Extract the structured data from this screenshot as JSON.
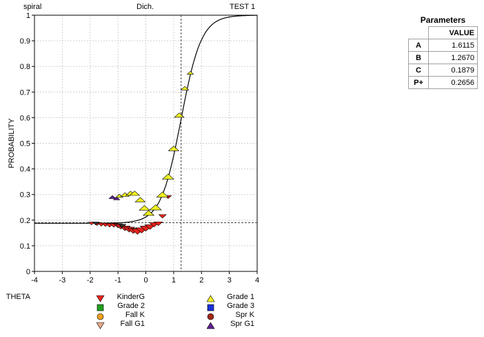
{
  "header": {
    "left": "spiral",
    "center": "Dich.",
    "right": "TEST 1"
  },
  "chart_data": {
    "type": "scatter",
    "xlabel": "THETA",
    "ylabel": "PROBABILITY",
    "xlim": [
      -4,
      4
    ],
    "ylim": [
      0,
      1
    ],
    "xticks": [
      "-4",
      "-3",
      "-2",
      "-1",
      "0",
      "1",
      "2",
      "3",
      "4"
    ],
    "yticks": [
      "0",
      "0.1",
      "0.2",
      "0.3",
      "0.4",
      "0.5",
      "0.6",
      "0.7",
      "0.8",
      "0.9",
      "1"
    ],
    "grid": true,
    "reference_lines": {
      "x": 1.267,
      "y": 0.19
    },
    "curve": {
      "a": 1.6115,
      "b": 1.267,
      "c": 0.1879
    },
    "series": [
      {
        "name": "KinderG",
        "marker": "triangle-down",
        "color": "#e8241c",
        "points": [
          [
            -1.95,
            0.187,
            0.3
          ],
          [
            -1.75,
            0.185,
            0.4
          ],
          [
            -1.6,
            0.183,
            0.45
          ],
          [
            -1.45,
            0.182,
            0.5
          ],
          [
            -1.3,
            0.18,
            0.55
          ],
          [
            -1.15,
            0.18,
            0.6
          ],
          [
            -1.0,
            0.178,
            0.65
          ],
          [
            -0.9,
            0.174,
            0.8
          ],
          [
            -0.75,
            0.168,
            0.85
          ],
          [
            -0.6,
            0.163,
            0.9
          ],
          [
            -0.45,
            0.158,
            0.95
          ],
          [
            -0.3,
            0.155,
            1.0
          ],
          [
            -0.15,
            0.16,
            1.0
          ],
          [
            0.0,
            0.167,
            0.95
          ],
          [
            0.15,
            0.173,
            0.85
          ],
          [
            0.3,
            0.182,
            0.75
          ],
          [
            0.45,
            0.186,
            0.6
          ],
          [
            0.6,
            0.215,
            0.5
          ],
          [
            0.8,
            0.29,
            0.4
          ]
        ]
      },
      {
        "name": "Grade 1",
        "marker": "triangle-up",
        "color": "#f0f020",
        "points": [
          [
            -0.95,
            0.295,
            0.45
          ],
          [
            -0.75,
            0.3,
            0.6
          ],
          [
            -0.55,
            0.305,
            0.7
          ],
          [
            -0.4,
            0.305,
            0.75
          ],
          [
            -0.2,
            0.28,
            0.8
          ],
          [
            -0.05,
            0.248,
            0.85
          ],
          [
            0.1,
            0.228,
            0.9
          ],
          [
            0.35,
            0.25,
            1.0
          ],
          [
            0.6,
            0.3,
            1.0
          ],
          [
            0.8,
            0.37,
            0.95
          ],
          [
            1.0,
            0.48,
            0.85
          ],
          [
            1.2,
            0.61,
            0.75
          ],
          [
            1.4,
            0.715,
            0.55
          ],
          [
            1.6,
            0.775,
            0.35
          ]
        ]
      },
      {
        "name": "Fall G1",
        "marker": "triangle-down-small",
        "color": "#303030",
        "points": [
          [
            -1.8,
            0.187,
            0.35
          ],
          [
            -0.85,
            0.178,
            0.4
          ]
        ]
      },
      {
        "name": "Spr G1",
        "marker": "triangle-up-small",
        "color": "#602090",
        "points": [
          [
            -1.2,
            0.29,
            0.4
          ],
          [
            -1.05,
            0.285,
            0.35
          ]
        ]
      }
    ]
  },
  "legend": [
    {
      "label": "KinderG",
      "marker": "triangle-down",
      "color": "#e8241c"
    },
    {
      "label": "Grade 1",
      "marker": "triangle-up",
      "color": "#f0f020"
    },
    {
      "label": "Grade 2",
      "marker": "square",
      "color": "#20a020"
    },
    {
      "label": "Grade 3",
      "marker": "square",
      "color": "#1830d8"
    },
    {
      "label": "Fall K",
      "marker": "circle",
      "color": "#f0a020"
    },
    {
      "label": "Spr K",
      "marker": "circle",
      "color": "#a02818"
    },
    {
      "label": "Fall G1",
      "marker": "triangle-down",
      "color": "#e8a888"
    },
    {
      "label": "Spr G1",
      "marker": "triangle-up",
      "color": "#602090"
    }
  ],
  "parameters": {
    "title": "Parameters",
    "column_header": "VALUE",
    "rows": [
      {
        "key": "A",
        "value": "1.6115"
      },
      {
        "key": "B",
        "value": "1.2670"
      },
      {
        "key": "C",
        "value": "0.1879"
      },
      {
        "key": "P+",
        "value": "0.2656"
      }
    ]
  }
}
